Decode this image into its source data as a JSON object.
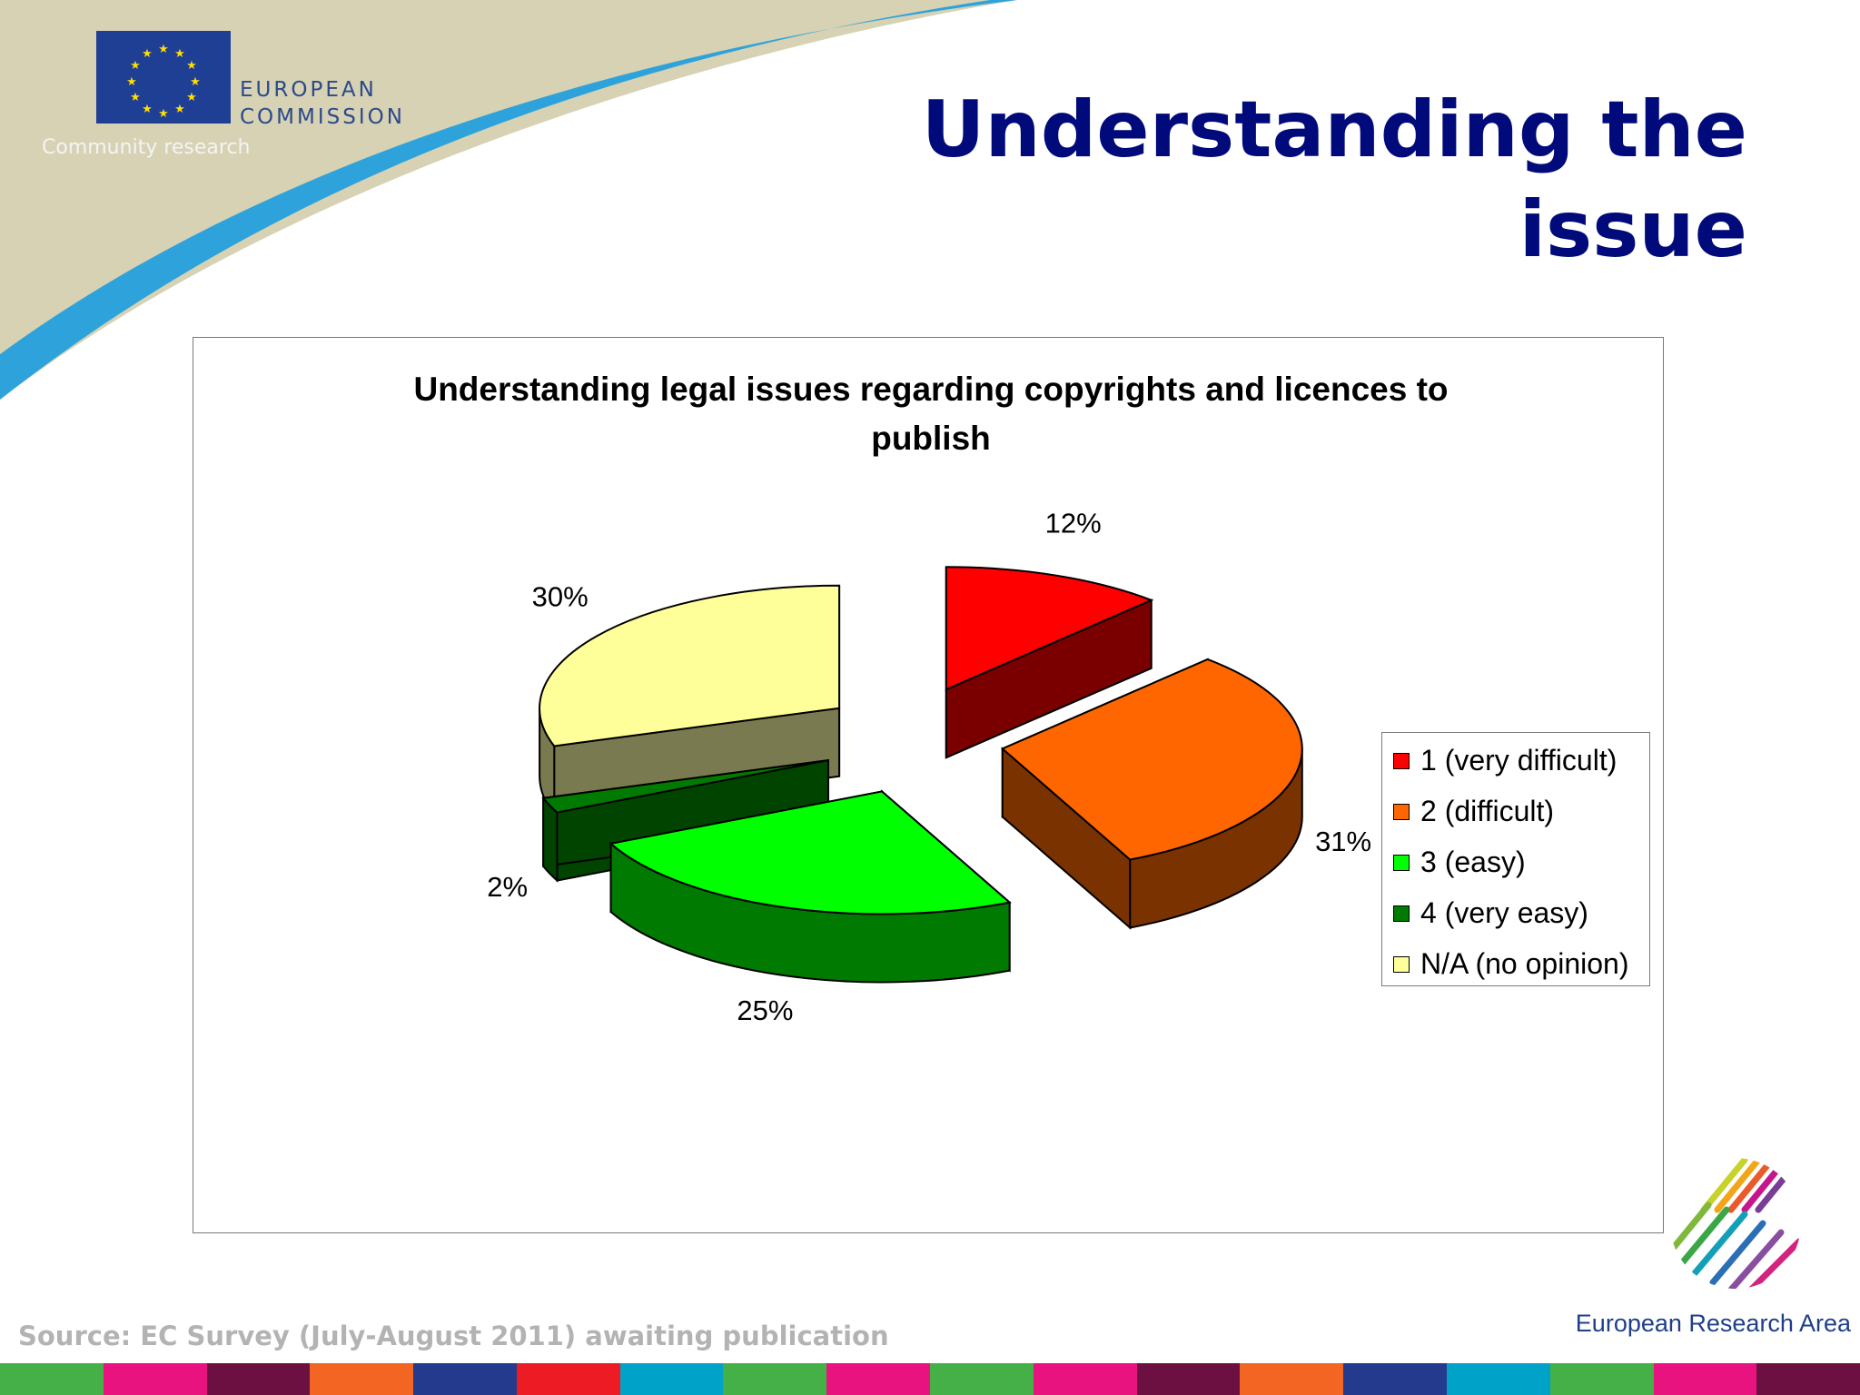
{
  "header": {
    "logo_lines": [
      "EUROPEAN",
      "COMMISSION"
    ],
    "logo_sub": "Community research",
    "title": "Understanding the issue"
  },
  "chart_data": {
    "type": "pie",
    "title": "Understanding legal issues regarding copyrights and licences to publish",
    "categories": [
      "1 (very difficult)",
      "2 (difficult)",
      "3 (easy)",
      "4 (very easy)",
      "N/A (no opinion)"
    ],
    "values": [
      12,
      31,
      25,
      2,
      30
    ],
    "data_labels": [
      "12%",
      "31%",
      "25%",
      "2%",
      "30%"
    ],
    "colors": [
      "#ff0000",
      "#ff6600",
      "#00ff00",
      "#007a00",
      "#ffff99"
    ],
    "side_colors": [
      "#7a0000",
      "#7a3300",
      "#007a00",
      "#004400",
      "#7a7a50"
    ],
    "legend": "right",
    "three_d": true,
    "exploded": true
  },
  "footer": {
    "source": "Source: EC Survey (July-August 2011) awaiting publication",
    "era_label": "European Research Area",
    "strip_colors": [
      "#44b047",
      "#e8137e",
      "#6b1040",
      "#f26522",
      "#243a8c",
      "#ed1c24",
      "#00a3c7",
      "#44b047",
      "#e8137e",
      "#44b047",
      "#e8137e",
      "#6b1040",
      "#f26522",
      "#243a8c",
      "#00a3c7",
      "#44b047",
      "#e8137e",
      "#6b1040"
    ]
  }
}
